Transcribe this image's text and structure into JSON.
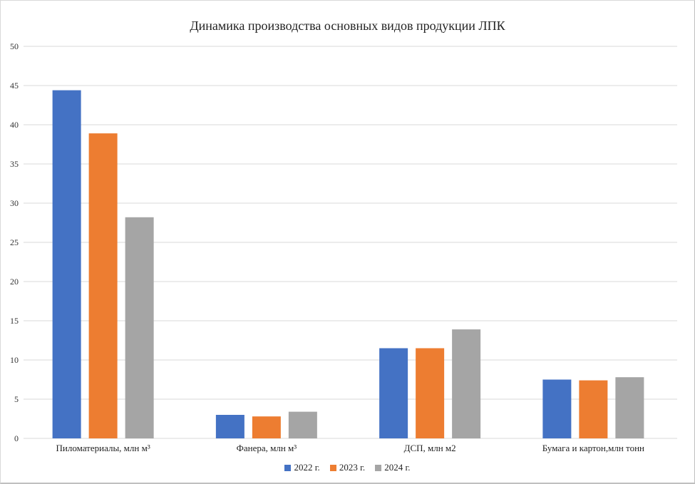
{
  "chart_data": {
    "type": "bar",
    "title": "Динамика производства основных видов продукции ЛПК",
    "categories": [
      "Пиломатериалы, млн м³",
      "Фанера, млн м³",
      "ДСП, млн м2",
      "Бумага и картон,млн тонн"
    ],
    "series": [
      {
        "name": "2022 г.",
        "color": "#4472c4",
        "values": [
          44.4,
          3.0,
          11.5,
          7.5
        ]
      },
      {
        "name": "2023 г.",
        "color": "#ed7d31",
        "values": [
          38.9,
          2.8,
          11.5,
          7.4
        ]
      },
      {
        "name": "2024 г.",
        "color": "#a5a5a5",
        "values": [
          28.2,
          3.4,
          13.9,
          7.8
        ]
      }
    ],
    "xlabel": "",
    "ylabel": "",
    "ylim": [
      0,
      50
    ],
    "yticks": [
      0,
      5,
      10,
      15,
      20,
      25,
      30,
      35,
      40,
      45,
      50
    ],
    "grid": true,
    "legend": "bottom"
  }
}
